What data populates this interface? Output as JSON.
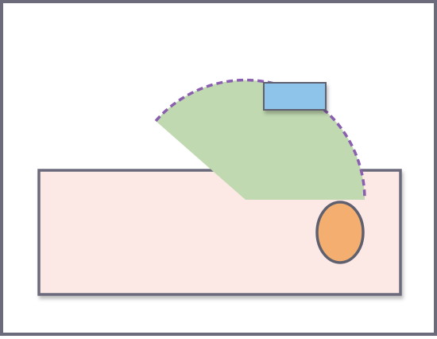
{
  "colors": {
    "frame_border": "#6b6b7b",
    "background": "#ffffff",
    "rect_fill": "#fce8e4",
    "rect_stroke": "#6b6b7b",
    "sector_fill": "#c0d9b0",
    "sector_arc_stroke": "#8a5faf",
    "small_rect_fill": "#8ec3ea",
    "small_rect_stroke": "#5e6070",
    "ellipse_fill": "#f4af70",
    "ellipse_stroke": "#5e6070"
  },
  "shapes": {
    "rectangle": "rectangle",
    "sector": "sector",
    "small_rectangle": "rectangle",
    "ellipse": "ellipse"
  }
}
